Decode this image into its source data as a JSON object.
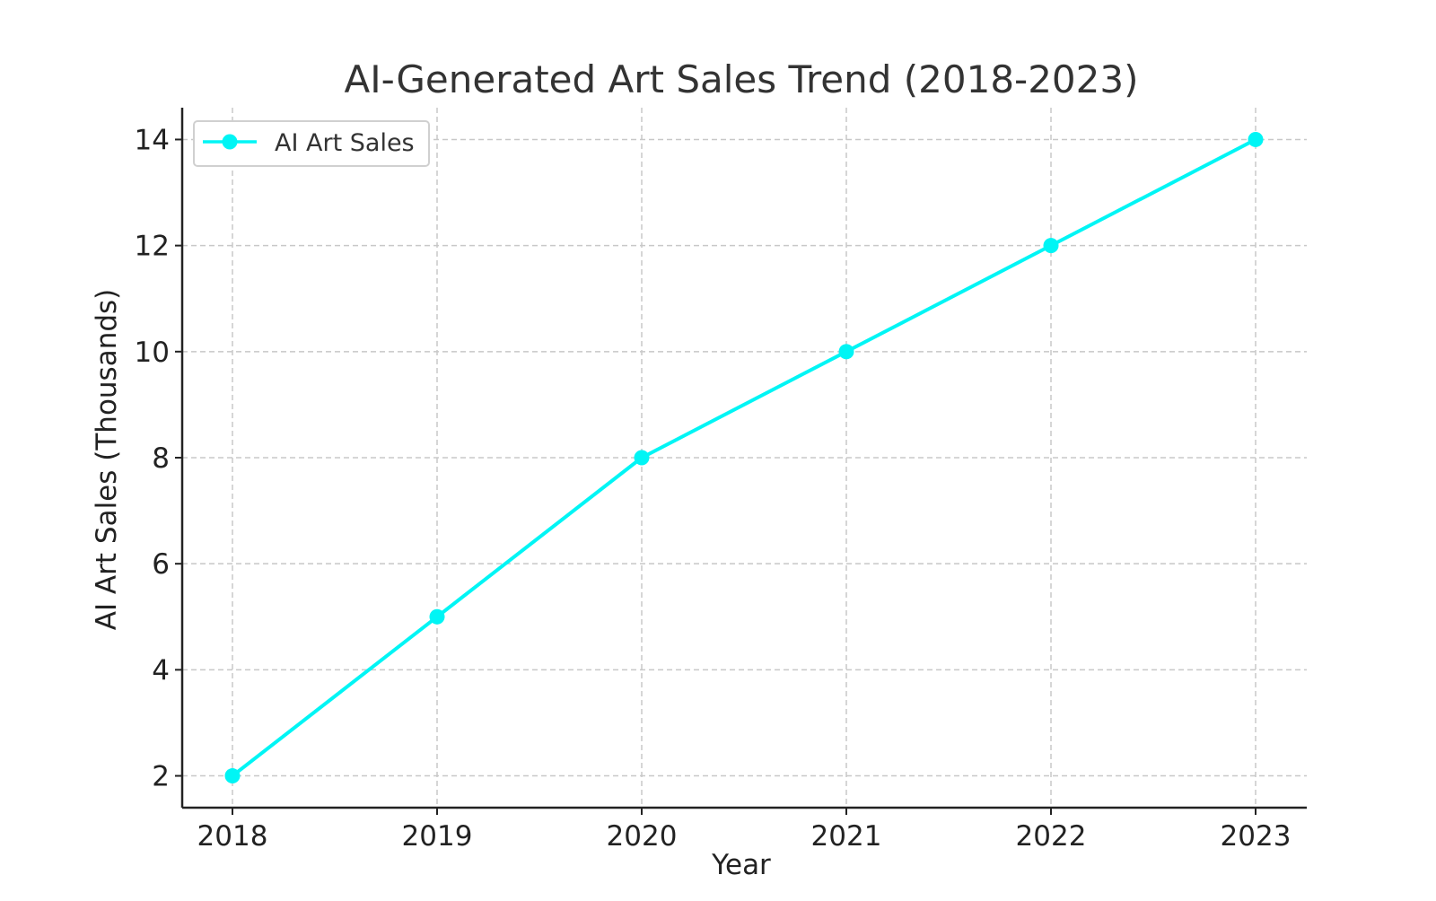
{
  "colors": {
    "series": "#00f5f5",
    "grid": "#c8c8c8",
    "axis": "#222222",
    "text": "#333333",
    "legend_border": "#d0d0d0"
  },
  "chart_data": {
    "type": "line",
    "title": "AI-Generated Art Sales Trend (2018-2023)",
    "xlabel": "Year",
    "ylabel": "AI Art Sales (Thousands)",
    "x": [
      "2018",
      "2019",
      "2020",
      "2021",
      "2022",
      "2023"
    ],
    "series": [
      {
        "name": "AI Art Sales",
        "values": [
          2,
          5,
          8,
          10,
          12,
          14
        ],
        "color": "#00f5f5",
        "marker": "circle"
      }
    ],
    "yticks": [
      "2",
      "4",
      "6",
      "8",
      "10",
      "12",
      "14"
    ],
    "ylim": [
      1.4,
      14.6
    ],
    "grid": true,
    "grid_style": "dashed",
    "legend_position": "top-left"
  }
}
